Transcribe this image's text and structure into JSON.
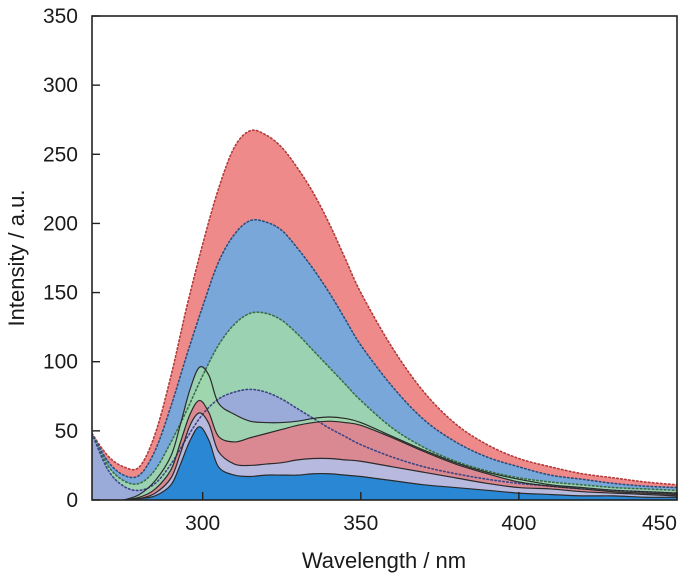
{
  "chart_data": {
    "type": "area",
    "title": "",
    "xlabel": "Wavelength / nm",
    "ylabel": "Intensity / a.u.",
    "xlim": [
      265,
      450
    ],
    "ylim": [
      0,
      350
    ],
    "xticks": [
      300,
      350,
      400,
      450
    ],
    "yticks": [
      0,
      50,
      100,
      150,
      200,
      250,
      300,
      350
    ],
    "grid": false,
    "legend": "none",
    "series": [
      {
        "color": "#ee8080",
        "line": "dotted",
        "line_color": "#b23a3a",
        "x": [
          265,
          270,
          275,
          280,
          285,
          290,
          295,
          300,
          305,
          310,
          315,
          320,
          325,
          330,
          335,
          340,
          345,
          350,
          360,
          370,
          380,
          390,
          400,
          410,
          420,
          430,
          440,
          450
        ],
        "y": [
          48,
          32,
          24,
          24,
          48,
          90,
          140,
          185,
          225,
          255,
          267,
          264,
          255,
          240,
          222,
          200,
          175,
          150,
          110,
          78,
          55,
          40,
          30,
          24,
          19,
          16,
          13,
          11
        ]
      },
      {
        "color": "#6fa9df",
        "line": "dotted",
        "line_color": "#2a4f7d",
        "x": [
          265,
          270,
          275,
          280,
          285,
          290,
          295,
          300,
          305,
          310,
          315,
          320,
          325,
          330,
          335,
          340,
          345,
          350,
          360,
          370,
          380,
          390,
          400,
          410,
          420,
          430,
          440,
          450
        ],
        "y": [
          48,
          28,
          18,
          18,
          36,
          68,
          105,
          140,
          172,
          192,
          202,
          201,
          195,
          182,
          167,
          150,
          131,
          112,
          82,
          58,
          42,
          31,
          24,
          18,
          15,
          12,
          10,
          9
        ]
      },
      {
        "color": "#9ed6ae",
        "line": "dotted",
        "line_color": "#3a6e48",
        "x": [
          265,
          270,
          275,
          280,
          285,
          290,
          295,
          300,
          305,
          310,
          315,
          320,
          325,
          330,
          335,
          340,
          345,
          350,
          360,
          370,
          380,
          390,
          400,
          410,
          420,
          430,
          440,
          450
        ],
        "y": [
          48,
          25,
          14,
          12,
          22,
          42,
          65,
          90,
          112,
          127,
          135,
          135,
          130,
          120,
          108,
          96,
          84,
          72,
          52,
          38,
          28,
          21,
          16,
          13,
          11,
          9,
          8,
          7
        ]
      },
      {
        "color": "#9aa6dc",
        "line": "dotted",
        "line_color": "#3c4585",
        "x": [
          265,
          270,
          275,
          280,
          285,
          290,
          295,
          300,
          305,
          310,
          315,
          320,
          325,
          330,
          335,
          340,
          345,
          350,
          360,
          370,
          380,
          390,
          400,
          410,
          420,
          430,
          440,
          450
        ],
        "y": [
          48,
          22,
          10,
          7,
          12,
          26,
          45,
          62,
          73,
          78,
          80,
          78,
          73,
          66,
          59,
          52,
          46,
          40,
          31,
          24,
          19,
          15,
          12,
          10,
          8,
          7,
          6,
          5
        ]
      },
      {
        "color": "#9ed6ae",
        "line": "solid",
        "line_color": "#2b2b2b",
        "x": [
          275,
          280,
          285,
          290,
          293,
          296,
          299,
          302,
          305,
          310,
          315,
          320,
          325,
          330,
          335,
          340,
          345,
          350,
          360,
          370,
          380,
          390,
          400,
          410,
          420,
          430,
          440,
          450
        ],
        "y": [
          0,
          4,
          14,
          32,
          55,
          80,
          96,
          90,
          70,
          62,
          57,
          56,
          56,
          57,
          59,
          60,
          59,
          56,
          46,
          36,
          27,
          20,
          15,
          11,
          9,
          7,
          6,
          5
        ]
      },
      {
        "color": "#e0828f",
        "line": "solid",
        "line_color": "#2b2b2b",
        "x": [
          275,
          280,
          285,
          290,
          293,
          296,
          299,
          302,
          305,
          310,
          315,
          320,
          325,
          330,
          335,
          340,
          345,
          350,
          360,
          370,
          380,
          390,
          400,
          410,
          420,
          430,
          440,
          450
        ],
        "y": [
          0,
          2,
          8,
          22,
          42,
          62,
          72,
          63,
          46,
          42,
          45,
          48,
          51,
          54,
          56,
          57,
          56,
          54,
          45,
          35,
          26,
          19,
          13,
          10,
          8,
          6,
          5,
          4
        ]
      },
      {
        "color": "#b4bde6",
        "line": "solid",
        "line_color": "#2b2b2b",
        "x": [
          275,
          280,
          285,
          290,
          293,
          296,
          299,
          302,
          305,
          310,
          315,
          320,
          325,
          330,
          335,
          340,
          345,
          350,
          360,
          370,
          380,
          390,
          400,
          410,
          420,
          430,
          440,
          450
        ],
        "y": [
          0,
          1,
          5,
          16,
          34,
          54,
          63,
          55,
          35,
          26,
          25,
          26,
          27,
          29,
          30,
          30,
          29,
          28,
          24,
          20,
          16,
          12,
          9,
          8,
          6,
          5,
          4,
          3
        ]
      },
      {
        "color": "#1d82d1",
        "line": "solid",
        "line_color": "#2b2b2b",
        "x": [
          275,
          280,
          285,
          290,
          293,
          296,
          299,
          302,
          305,
          310,
          315,
          320,
          325,
          330,
          335,
          340,
          345,
          350,
          360,
          370,
          380,
          390,
          400,
          410,
          420,
          430,
          440,
          450
        ],
        "y": [
          0,
          1,
          3,
          11,
          26,
          43,
          53,
          43,
          24,
          18,
          17,
          18,
          18,
          18,
          19,
          19,
          18,
          17,
          14,
          11,
          9,
          7,
          5,
          4,
          3,
          3,
          2,
          2
        ]
      }
    ]
  }
}
